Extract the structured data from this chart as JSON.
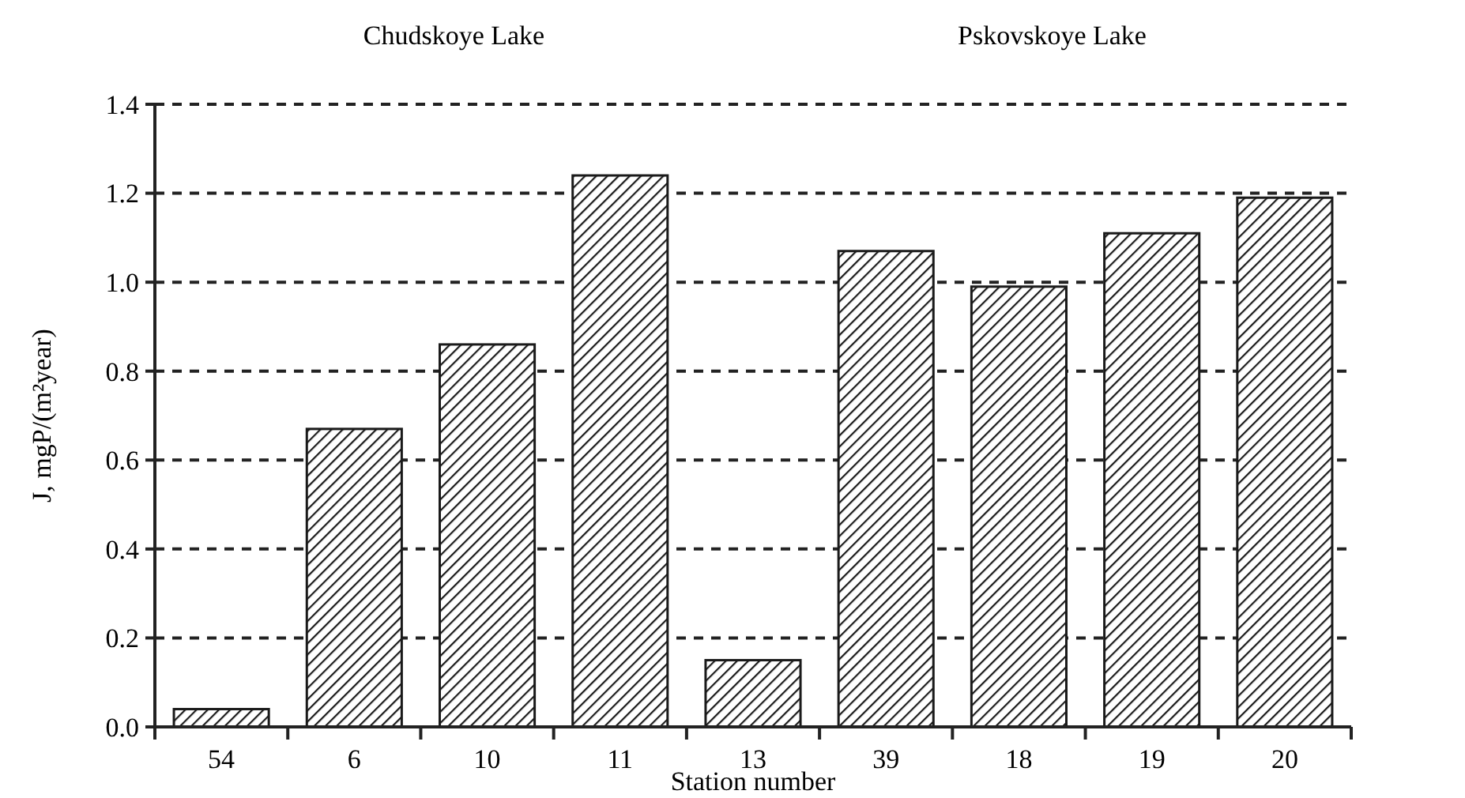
{
  "chart_data": {
    "type": "bar",
    "categories": [
      "54",
      "6",
      "10",
      "11",
      "13",
      "39",
      "18",
      "19",
      "20"
    ],
    "values": [
      0.04,
      0.67,
      0.86,
      1.24,
      0.15,
      1.07,
      0.99,
      1.11,
      1.19
    ],
    "color": "#1a1a1a",
    "xlabel": "Station number",
    "ylabel": "J, mgP/(m²year)",
    "ylim": [
      0,
      1.4
    ],
    "yticks": [
      {
        "value": 0,
        "label": "0.0"
      },
      0.2,
      0.4,
      0.6,
      0.8,
      {
        "value": 1,
        "label": "1.0"
      },
      1.2,
      1.4
    ],
    "grid": "y",
    "annotations": [
      "Chudskoye Lake",
      "Pskovskoye Lake"
    ]
  }
}
